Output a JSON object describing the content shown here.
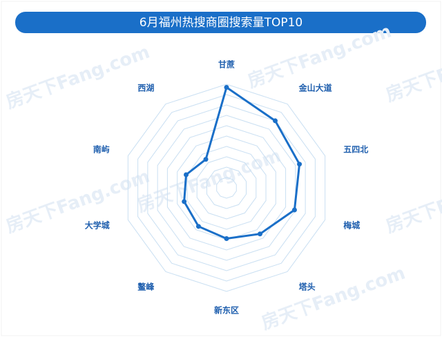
{
  "chart_data": {
    "type": "radar",
    "title": "6月福州热搜商圈搜索量TOP10",
    "watermark": "房天下Fang.com",
    "categories": [
      "甘蔗",
      "金山大道",
      "五四北",
      "梅城",
      "塔头",
      "新东区",
      "鳌峰",
      "大学城",
      "南屿",
      "西湖"
    ],
    "values": [
      97,
      80,
      74,
      69,
      55,
      49,
      46,
      43,
      41,
      34
    ],
    "color": "#1a6fc8",
    "ylim": [
      0,
      100
    ],
    "grid_rings": 10,
    "grid": true
  }
}
